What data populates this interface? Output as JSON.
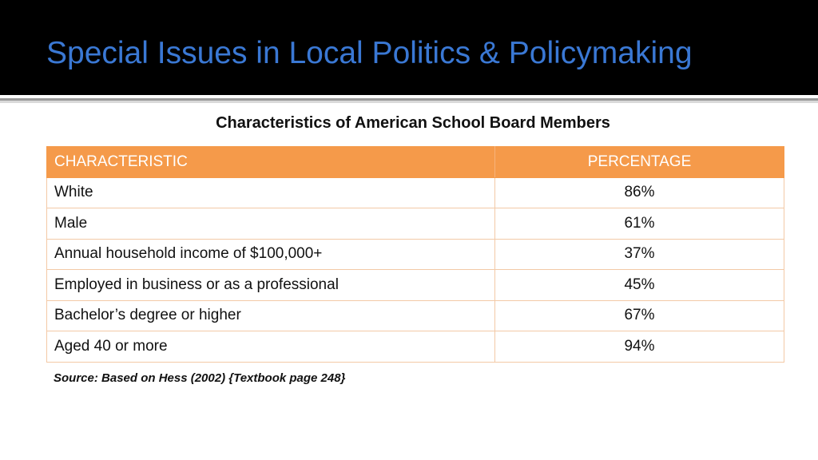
{
  "slide": {
    "title": "Special Issues in Local Politics & Policymaking",
    "subtitle": "Characteristics of American School Board Members",
    "source": "Source: Based on Hess (2002) {Textbook page 248}"
  },
  "table": {
    "headers": [
      "CHARACTERISTIC",
      "PERCENTAGE"
    ],
    "rows": [
      {
        "characteristic": "White",
        "percentage": "86%"
      },
      {
        "characteristic": "Male",
        "percentage": "61%"
      },
      {
        "characteristic": "Annual household income of $100,000+",
        "percentage": "37%"
      },
      {
        "characteristic": "Employed in business or as a professional",
        "percentage": "45%"
      },
      {
        "characteristic": "Bachelor’s degree or higher",
        "percentage": "67%"
      },
      {
        "characteristic": "Aged 40 or more",
        "percentage": "94%"
      }
    ]
  },
  "colors": {
    "background": "#ffffff",
    "title_bar": "#000000",
    "title_text": "#3a78d4",
    "header_fill": "#f59a4a",
    "cell_border": "#f3c9a6"
  }
}
